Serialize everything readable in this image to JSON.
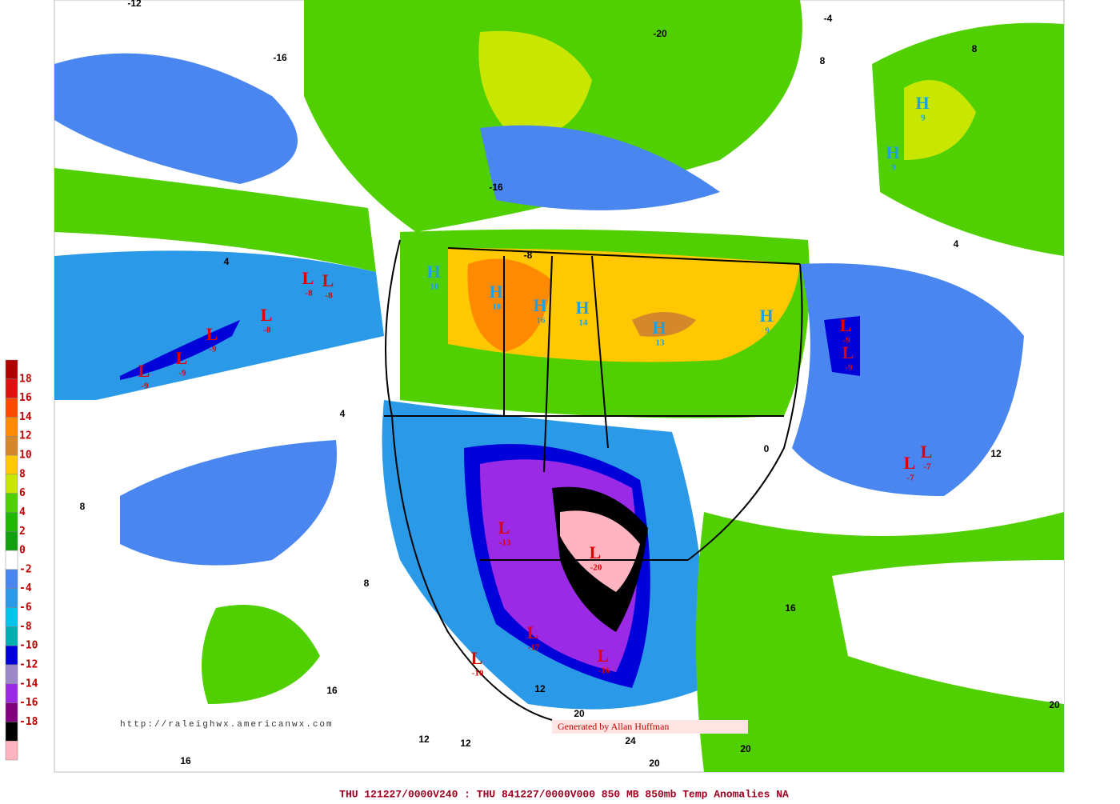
{
  "colorbar": {
    "colors": [
      "#b00000",
      "#e01010",
      "#ff4a00",
      "#ff8a00",
      "#d4882a",
      "#ffc800",
      "#c8e600",
      "#50d000",
      "#20b800",
      "#10a010",
      "#ffffff",
      "#4a86f0",
      "#2a9ae8",
      "#00c4e8",
      "#00b0b0",
      "#0000d8",
      "#9a88c8",
      "#9a2ae6",
      "#800080",
      "#000000",
      "#ffb4c0"
    ],
    "labels": [
      18,
      16,
      14,
      12,
      10,
      8,
      6,
      4,
      2,
      0,
      -2,
      -4,
      -6,
      -8,
      -10,
      -12,
      -14,
      -16,
      -18
    ]
  },
  "centers": [
    {
      "letter": "H",
      "value": 18
    },
    {
      "letter": "H",
      "value": 16
    },
    {
      "letter": "H",
      "value": 14
    },
    {
      "letter": "H",
      "value": 13
    },
    {
      "letter": "H",
      "value": 10
    },
    {
      "letter": "H",
      "value": 9
    },
    {
      "letter": "H",
      "value": 9
    },
    {
      "letter": "H",
      "value": 9
    },
    {
      "letter": "L",
      "value": -8
    },
    {
      "letter": "L",
      "value": -8
    },
    {
      "letter": "L",
      "value": -8
    },
    {
      "letter": "L",
      "value": -9
    },
    {
      "letter": "L",
      "value": -9
    },
    {
      "letter": "L",
      "value": -9
    },
    {
      "letter": "L",
      "value": -9
    },
    {
      "letter": "L",
      "value": -9
    },
    {
      "letter": "L",
      "value": -7
    },
    {
      "letter": "L",
      "value": -7
    },
    {
      "letter": "L",
      "value": -20
    },
    {
      "letter": "L",
      "value": -17
    },
    {
      "letter": "L",
      "value": -16
    },
    {
      "letter": "L",
      "value": -13
    },
    {
      "letter": "L",
      "value": -10
    }
  ],
  "contour_labels": [
    -16,
    -12,
    4,
    4,
    8,
    8,
    16,
    16,
    12,
    12,
    12,
    20,
    24,
    20,
    20,
    20,
    16,
    12,
    4,
    8,
    8,
    -4,
    -20,
    -16,
    -8,
    0
  ],
  "url": "http://raleighwx.americanwx.com",
  "credit": "Generated by Allan Huffman",
  "footer": "THU 121227/0000V240 : THU 841227/0000V000  850 MB 850mb Temp Anomalies NA"
}
